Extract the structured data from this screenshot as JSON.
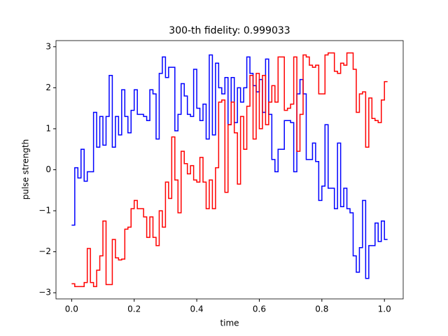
{
  "chart_data": {
    "type": "step",
    "title": "300-th fidelity: 0.999033",
    "x_label": "time",
    "y_label": "pulse strength",
    "x": [
      0,
      0.01,
      0.02,
      0.03,
      0.04,
      0.05,
      0.06,
      0.07,
      0.08,
      0.09,
      0.1,
      0.11,
      0.12,
      0.13,
      0.14,
      0.15,
      0.16,
      0.17,
      0.18,
      0.19,
      0.2,
      0.21,
      0.22,
      0.23,
      0.24,
      0.25,
      0.26,
      0.27,
      0.28,
      0.29,
      0.3,
      0.31,
      0.32,
      0.33,
      0.34,
      0.35,
      0.36,
      0.37,
      0.38,
      0.39,
      0.4,
      0.41,
      0.42,
      0.43,
      0.44,
      0.45,
      0.46,
      0.47,
      0.48,
      0.49,
      0.5,
      0.51,
      0.52,
      0.53,
      0.54,
      0.55,
      0.56,
      0.57,
      0.58,
      0.59,
      0.6,
      0.61,
      0.62,
      0.63,
      0.64,
      0.65,
      0.66,
      0.67,
      0.68,
      0.69,
      0.7,
      0.71,
      0.72,
      0.73,
      0.74,
      0.75,
      0.76,
      0.77,
      0.78,
      0.79,
      0.8,
      0.81,
      0.82,
      0.83,
      0.84,
      0.85,
      0.86,
      0.87,
      0.88,
      0.89,
      0.9,
      0.91,
      0.92,
      0.93,
      0.94,
      0.95,
      0.96,
      0.97,
      0.98,
      0.99,
      1.0
    ],
    "series": [
      {
        "color": "#0000ff",
        "values": [
          -1.35,
          0.05,
          -0.2,
          0.5,
          -0.28,
          -0.05,
          -0.05,
          1.4,
          0.55,
          1.3,
          0.6,
          1.3,
          2.3,
          0.55,
          1.3,
          0.85,
          1.95,
          1.3,
          0.9,
          1.45,
          1.95,
          1.35,
          1.35,
          1.3,
          1.2,
          1.95,
          1.85,
          0.75,
          2.35,
          2.75,
          2.25,
          2.5,
          2.5,
          0.95,
          1.35,
          2.1,
          1.8,
          1.35,
          1.3,
          2.45,
          1.5,
          1.2,
          1.6,
          0.75,
          2.8,
          0.85,
          2.6,
          2.0,
          1.85,
          2.25,
          1.1,
          2.25,
          1.15,
          2.0,
          1.65,
          2.0,
          2.75,
          2.35,
          2.05,
          1.9,
          2.2,
          1.4,
          2.7,
          1.35,
          0.25,
          -0.05,
          0.5,
          0.5,
          1.2,
          1.2,
          1.15,
          -0.05,
          1.85,
          2.2,
          1.85,
          0.25,
          0.25,
          0.65,
          0.2,
          -0.75,
          -0.4,
          1.1,
          -0.45,
          -0.45,
          -0.95,
          0.65,
          -0.9,
          -0.45,
          -0.95,
          -1.05,
          -2.1,
          -2.5,
          -1.9,
          -0.75,
          -2.65,
          -1.85,
          -1.85,
          -1.3,
          -1.75,
          -1.25,
          -1.7
        ]
      },
      {
        "color": "#ff0000",
        "values": [
          -2.78,
          -2.85,
          -2.85,
          -2.85,
          -2.75,
          -1.92,
          -2.75,
          -2.85,
          -2.45,
          -2.1,
          -1.25,
          -2.8,
          -2.8,
          -1.7,
          -2.15,
          -2.2,
          -2.18,
          -1.45,
          -1.4,
          -0.95,
          -0.75,
          -0.95,
          -0.95,
          -1.15,
          -1.65,
          -1.15,
          -1.65,
          -1.85,
          -1.0,
          -1.4,
          -0.3,
          -0.7,
          0.8,
          -0.25,
          -1.05,
          0.45,
          0.15,
          -0.1,
          0.1,
          -0.25,
          -0.3,
          0.3,
          -0.3,
          -0.95,
          -0.25,
          -0.95,
          0.05,
          1.65,
          1.7,
          -0.55,
          1.1,
          1.65,
          0.9,
          -0.35,
          1.3,
          0.5,
          1.55,
          2.3,
          0.75,
          2.35,
          1.0,
          2.3,
          1.1,
          1.65,
          2.05,
          1.65,
          2.75,
          2.75,
          1.45,
          1.5,
          1.6,
          2.75,
          0.45,
          1.35,
          2.8,
          2.75,
          2.55,
          2.5,
          2.55,
          1.85,
          1.85,
          2.8,
          2.85,
          2.85,
          2.4,
          2.35,
          2.6,
          2.55,
          2.85,
          2.85,
          2.45,
          1.4,
          1.85,
          1.9,
          0.55,
          1.75,
          1.25,
          1.2,
          1.15,
          1.7,
          2.15
        ]
      }
    ],
    "xlim": [
      -0.05,
      1.06
    ],
    "ylim": [
      -3.15,
      3.15
    ],
    "xticks": [
      {
        "value": 0,
        "label": "0.0"
      },
      0.2,
      0.4,
      0.6,
      0.8,
      {
        "value": 1,
        "label": "1.0"
      }
    ],
    "yticks": [
      {
        "value": -3,
        "label": "−3"
      },
      {
        "value": -2,
        "label": "−2"
      },
      {
        "value": -1,
        "label": "−1"
      },
      0,
      1,
      2,
      3
    ]
  }
}
